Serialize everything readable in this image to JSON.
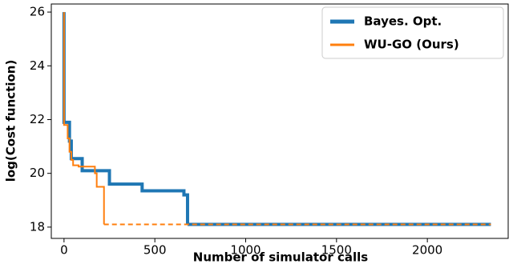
{
  "chart_data": {
    "type": "line",
    "x_label": "Number of simulator calls",
    "y_label": "log(Cost function)",
    "xlim": [
      -70,
      2445
    ],
    "ylim": [
      17.58,
      26.3
    ],
    "xticks": [
      0,
      500,
      1000,
      1500,
      2000
    ],
    "yticks": [
      18,
      20,
      22,
      24,
      26
    ],
    "legend": "upper right",
    "series": [
      {
        "name": "Bayes. Opt.",
        "color": "#1f77b4",
        "linewidth": 4,
        "linestyle_last_segment": "solid",
        "x": [
          0,
          0,
          30,
          30,
          40,
          40,
          100,
          100,
          250,
          250,
          430,
          430,
          660,
          660,
          680,
          680,
          2350
        ],
        "values": [
          26,
          21.9,
          21.9,
          21.2,
          21.2,
          20.55,
          20.55,
          20.1,
          20.1,
          19.6,
          19.6,
          19.35,
          19.35,
          19.2,
          19.2,
          18.1,
          18.1
        ]
      },
      {
        "name": "WU-GO (Ours)",
        "color": "#ff7f0e",
        "linewidth": 2,
        "linestyle_last_segment": "dashed",
        "x": [
          0,
          0,
          20,
          20,
          30,
          30,
          40,
          40,
          50,
          50,
          80,
          80,
          170,
          170,
          180,
          180,
          220,
          220,
          2350
        ],
        "values": [
          26,
          21.8,
          21.8,
          21.3,
          21.3,
          20.8,
          20.8,
          20.5,
          20.5,
          20.3,
          20.3,
          20.25,
          20.25,
          20.0,
          20.0,
          19.5,
          19.5,
          18.1,
          18.1
        ]
      }
    ]
  }
}
